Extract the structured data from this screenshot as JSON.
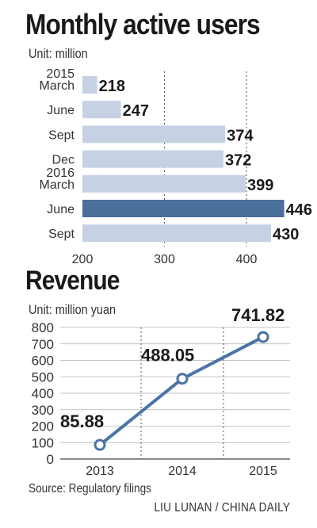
{
  "titles": {
    "chart1": "Monthly active users",
    "chart2": "Revenue"
  },
  "units": {
    "chart1": "Unit: million",
    "chart2": "Unit: million yuan"
  },
  "source": "Source: Regulatory filings",
  "credit": "LIU LUNAN / CHINA DAILY",
  "colors": {
    "bar": "#c6d2e4",
    "bar_highlight": "#4a6f9a",
    "line": "#4a74a5",
    "marker_fill": "#ffffff",
    "grid": "#555555",
    "text": "#1a1a1a"
  },
  "chart_data": [
    {
      "type": "bar",
      "orientation": "horizontal",
      "title": "Monthly active users",
      "unit": "Unit: million",
      "categories": [
        {
          "year": "2015",
          "label": "March"
        },
        {
          "year": "",
          "label": "June"
        },
        {
          "year": "",
          "label": "Sept"
        },
        {
          "year": "",
          "label": "Dec"
        },
        {
          "year": "2016",
          "label": "March"
        },
        {
          "year": "",
          "label": "June"
        },
        {
          "year": "",
          "label": "Sept"
        }
      ],
      "values": [
        218,
        247,
        374,
        372,
        399,
        446,
        430
      ],
      "highlight_index": 5,
      "xlim": [
        200,
        450
      ],
      "xticks": [
        200,
        300,
        400
      ],
      "grid": "vertical dotted"
    },
    {
      "type": "line",
      "title": "Revenue",
      "unit": "Unit: million yuan",
      "x": [
        "2013",
        "2014",
        "2015"
      ],
      "values": [
        85.88,
        488.05,
        741.82
      ],
      "value_labels": [
        "85.88",
        "488.05",
        "741.82"
      ],
      "ylim": [
        0,
        800
      ],
      "yticks": [
        0,
        100,
        200,
        300,
        400,
        500,
        600,
        700,
        800
      ],
      "grid": "horizontal solid, vertical dotted"
    }
  ]
}
